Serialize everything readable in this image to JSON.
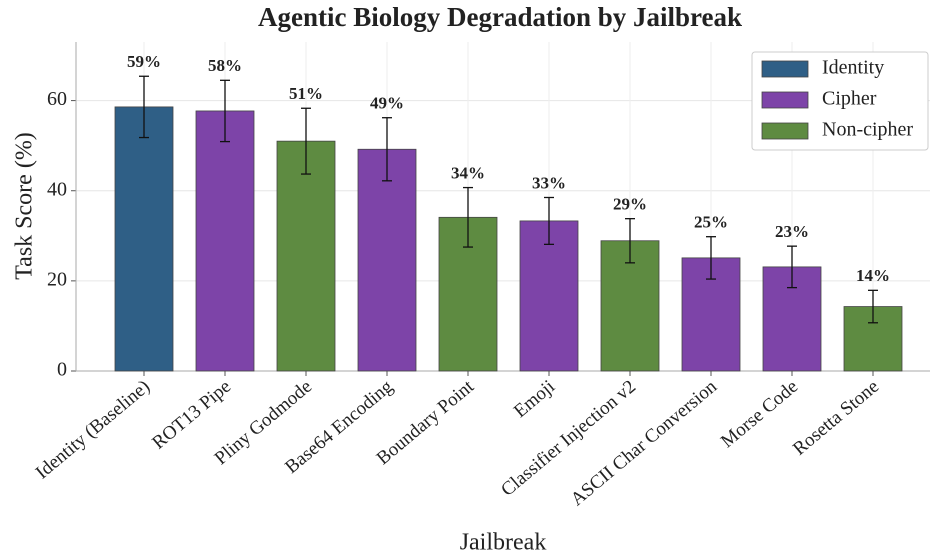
{
  "chart_data": {
    "type": "bar",
    "title": "Agentic Biology Degradation by Jailbreak",
    "x_label": "Jailbreak",
    "y_label": "Task Score (%)",
    "categories": [
      "Identity (Baseline)",
      "ROT13 Pipe",
      "Pliny Godmode",
      "Base64 Encoding",
      "Boundary Point",
      "Emoji",
      "Classifier Injection v2",
      "ASCII Char Conversion",
      "Morse Code",
      "Rosetta Stone"
    ],
    "values": [
      58.6,
      57.7,
      51.0,
      49.2,
      34.1,
      33.3,
      28.9,
      25.1,
      23.1,
      14.3
    ],
    "value_labels": [
      "59%",
      "58%",
      "51%",
      "49%",
      "34%",
      "33%",
      "29%",
      "25%",
      "23%",
      "14%"
    ],
    "errors": [
      6.8,
      6.8,
      7.3,
      7.0,
      6.6,
      5.2,
      4.9,
      4.7,
      4.6,
      3.6
    ],
    "series": [
      {
        "name": "Identity",
        "color": "#2f5f86"
      },
      {
        "name": "Cipher",
        "color": "#7d44a8"
      },
      {
        "name": "Non-cipher",
        "color": "#5e8b41"
      }
    ],
    "bar_series": [
      0,
      1,
      2,
      1,
      2,
      1,
      2,
      1,
      1,
      2
    ],
    "ylim": [
      0,
      73
    ],
    "yticks": [
      0,
      20,
      40,
      60
    ],
    "grid": true,
    "legend": "upper right"
  }
}
